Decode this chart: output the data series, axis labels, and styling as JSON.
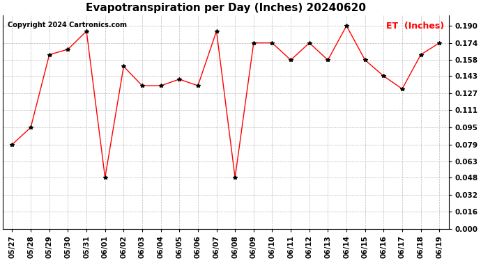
{
  "title": "Evapotranspiration per Day (Inches) 20240620",
  "copyright": "Copyright 2024 Cartronics.com",
  "legend_label": "ET  (Inches)",
  "x_labels": [
    "05/27",
    "05/28",
    "05/29",
    "05/30",
    "05/31",
    "06/01",
    "06/02",
    "06/03",
    "06/04",
    "06/05",
    "06/06",
    "06/07",
    "06/08",
    "06/09",
    "06/10",
    "06/11",
    "06/12",
    "06/13",
    "06/14",
    "06/15",
    "06/16",
    "06/17",
    "06/18",
    "06/19"
  ],
  "y_values": [
    0.079,
    0.095,
    0.163,
    0.168,
    0.185,
    0.048,
    0.152,
    0.134,
    0.134,
    0.14,
    0.134,
    0.185,
    0.048,
    0.174,
    0.174,
    0.158,
    0.174,
    0.158,
    0.19,
    0.158,
    0.143,
    0.131,
    0.163,
    0.174
  ],
  "ylim": [
    0.0,
    0.2
  ],
  "yticks": [
    0.0,
    0.016,
    0.032,
    0.048,
    0.063,
    0.079,
    0.095,
    0.111,
    0.127,
    0.143,
    0.158,
    0.174,
    0.19
  ],
  "line_color": "red",
  "marker_color": "black",
  "grid_color": "#bbbbbb",
  "background_color": "#ffffff",
  "title_fontsize": 11,
  "copyright_fontsize": 7,
  "legend_fontsize": 9,
  "tick_fontsize": 7.5,
  "legend_color": "red"
}
